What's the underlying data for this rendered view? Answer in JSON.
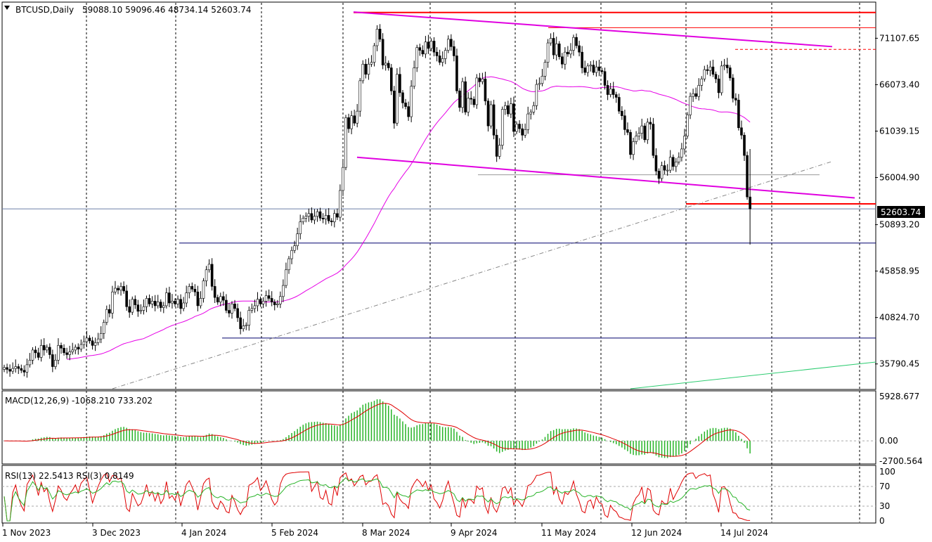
{
  "header": {
    "symbol_timeframe": "BTCUSD,Daily",
    "ohlc": "59088.10 59096.46 48734.14 52603.74"
  },
  "chart_data": {
    "type": "candlestick",
    "symbol": "BTCUSD",
    "timeframe": "Daily",
    "ohlc_last": {
      "open": 59088.1,
      "high": 59096.46,
      "low": 48734.14,
      "close": 52603.74
    },
    "last_price_label": "52603.74",
    "price_ticks": [
      "71107.65",
      "66073.40",
      "61039.15",
      "56004.90",
      "50893.20",
      "45858.95",
      "40824.70",
      "35790.45"
    ],
    "price_range": [
      33100,
      74950
    ],
    "x_tick_labels": [
      "1 Nov 2023",
      "3 Dec 2023",
      "4 Jan 2024",
      "5 Feb 2024",
      "8 Mar 2024",
      "9 Apr 2024",
      "11 May 2024",
      "12 Jun 2024",
      "14 Jul 2024"
    ],
    "grid": "vertical dashed",
    "candles_close": [
      35400,
      35200,
      35000,
      35300,
      35500,
      35300,
      35100,
      34900,
      35700,
      36200,
      37300,
      37000,
      36500,
      37800,
      37300,
      37600,
      36800,
      35500,
      36200,
      37800,
      37500,
      37000,
      36800,
      37100,
      37300,
      37600,
      37400,
      37900,
      38200,
      38600,
      38300,
      37800,
      38100,
      38500,
      39100,
      40300,
      41700,
      41300,
      43600,
      44000,
      43800,
      44200,
      43700,
      42000,
      41400,
      42800,
      42200,
      41500,
      41600,
      42000,
      42900,
      42300,
      42600,
      42100,
      42500,
      41900,
      42100,
      43500,
      42400,
      42600,
      42300,
      42800,
      41800,
      42400,
      43500,
      44200,
      43900,
      43600,
      42100,
      42900,
      44800,
      46000,
      46600,
      44200,
      43000,
      42500,
      43100,
      42700,
      41600,
      41300,
      42300,
      41800,
      40800,
      39600,
      39900,
      40000,
      41600,
      41800,
      42100,
      42800,
      42300,
      42600,
      43200,
      42900,
      42500,
      42200,
      42300,
      43100,
      44300,
      46000,
      47200,
      48100,
      48600,
      49900,
      51200,
      51600,
      51800,
      52100,
      51400,
      51800,
      52300,
      51600,
      51500,
      51900,
      51300,
      51200,
      52100,
      51700,
      54600,
      57100,
      62500,
      61300,
      62700,
      61900,
      63200,
      66500,
      68300,
      67200,
      68300,
      68500,
      70300,
      72100,
      71000,
      68200,
      68400,
      67900,
      65400,
      61900,
      67200,
      65200,
      64100,
      63700,
      62600,
      65900,
      67900,
      70100,
      69800,
      69400,
      70700,
      70000,
      70800,
      69600,
      69200,
      68500,
      68900,
      69800,
      71000,
      70200,
      69200,
      65400,
      63600,
      66400,
      63100,
      64600,
      64500,
      63900,
      66800,
      66400,
      66700,
      64300,
      61600,
      63900,
      60600,
      58300,
      59500,
      63400,
      63800,
      62900,
      64000,
      61000,
      61800,
      61300,
      60600,
      61200,
      62900,
      63100,
      63800,
      66100,
      66200,
      67000,
      68500,
      70600,
      71100,
      69300,
      70500,
      69100,
      68300,
      69600,
      69400,
      69800,
      71200,
      70300,
      69600,
      67900,
      67400,
      68100,
      68200,
      67400,
      68000,
      67600,
      67500,
      66000,
      65000,
      65600,
      65000,
      64700,
      63200,
      62700,
      61200,
      60900,
      58500,
      59900,
      60500,
      60800,
      61600,
      60100,
      62000,
      61800,
      58400,
      56700,
      55900,
      57300,
      56800,
      56800,
      58200,
      57200,
      57700,
      58200,
      59100,
      60500,
      62800,
      64800,
      65100,
      64800,
      66000,
      66700,
      67700,
      67600,
      68000,
      67200,
      66700,
      65200,
      68100,
      68200,
      67900,
      66800,
      64600,
      64400,
      61400,
      60600,
      58400,
      53900,
      52603.74
    ],
    "overlays": [
      {
        "name": "moving average",
        "color": "#e600e6"
      },
      {
        "name": "trend lines",
        "color": "#e000e0"
      },
      {
        "name": "horizontal levels",
        "color": "#ff0000"
      }
    ],
    "indicators": {
      "macd": {
        "label": "MACD(12,26,9) -1068.210 733.202",
        "ticks": [
          "5928.677",
          "0.00",
          "-2700.564"
        ],
        "range": [
          -2900,
          6300
        ],
        "histogram_color": "#28b428",
        "signal_color": "#e00000"
      },
      "rsi": {
        "label": "RSI(13) 22.5413  RSI(3) 0.8149",
        "ticks": [
          "100",
          "70",
          "30",
          "0"
        ],
        "range": [
          0,
          100
        ],
        "line_colors": [
          "#e00000",
          "#28b428"
        ]
      }
    }
  }
}
